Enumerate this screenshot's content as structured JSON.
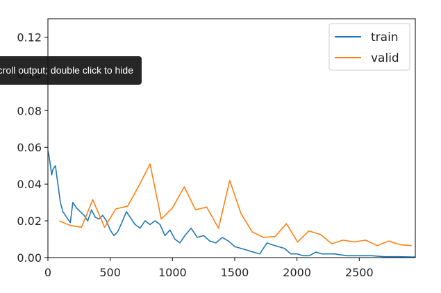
{
  "tooltip": {
    "text": "Click to scroll output; double click to hide"
  },
  "colors": {
    "train": "#1f77b4",
    "valid": "#ff7f0e",
    "axes": "#000000",
    "text": "#222222"
  },
  "chart_data": {
    "type": "line",
    "title": "",
    "xlabel": "",
    "ylabel": "",
    "xlim": [
      0,
      2950
    ],
    "ylim": [
      0,
      0.13
    ],
    "grid": false,
    "legend_position": "top-right",
    "xticks": [
      0,
      500,
      1000,
      1500,
      2000,
      2500
    ],
    "xtick_labels": [
      "0",
      "500",
      "1000",
      "1500",
      "2000",
      "2500"
    ],
    "yticks": [
      0.0,
      0.02,
      0.04,
      0.06,
      0.08,
      0.1,
      0.12
    ],
    "ytick_labels": [
      "0.00",
      "0.02",
      "0.04",
      "0.06",
      "0.08",
      "0.10",
      "0.12"
    ],
    "series": [
      {
        "name": "train",
        "color": "#1f77b4",
        "x": [
          0,
          10,
          20,
          30,
          40,
          60,
          80,
          100,
          120,
          150,
          180,
          200,
          230,
          260,
          290,
          320,
          350,
          380,
          410,
          440,
          470,
          500,
          530,
          560,
          600,
          630,
          660,
          700,
          740,
          780,
          820,
          860,
          900,
          940,
          980,
          1020,
          1060,
          1100,
          1150,
          1200,
          1250,
          1300,
          1350,
          1400,
          1450,
          1500,
          1550,
          1600,
          1650,
          1700,
          1760,
          1800,
          1850,
          1900,
          1950,
          2000,
          2050,
          2100,
          2150,
          2200,
          2300,
          2400,
          2500,
          2600,
          2700,
          2800,
          2950
        ],
        "y": [
          0.058,
          0.055,
          0.05,
          0.045,
          0.048,
          0.05,
          0.04,
          0.03,
          0.025,
          0.022,
          0.019,
          0.03,
          0.027,
          0.025,
          0.023,
          0.02,
          0.026,
          0.022,
          0.021,
          0.023,
          0.02,
          0.015,
          0.012,
          0.014,
          0.02,
          0.025,
          0.022,
          0.018,
          0.016,
          0.02,
          0.018,
          0.02,
          0.018,
          0.012,
          0.015,
          0.01,
          0.008,
          0.012,
          0.016,
          0.011,
          0.012,
          0.009,
          0.008,
          0.011,
          0.009,
          0.006,
          0.005,
          0.004,
          0.003,
          0.002,
          0.008,
          0.007,
          0.006,
          0.005,
          0.002,
          0.002,
          0.001,
          0.001,
          0.003,
          0.002,
          0.002,
          0.001,
          0.001,
          0.001,
          0.0005,
          0.0005,
          0.0003
        ]
      },
      {
        "name": "valid",
        "color": "#ff7f0e",
        "x": [
          90,
          180,
          270,
          360,
          455,
          545,
          640,
          730,
          820,
          910,
          1000,
          1095,
          1185,
          1275,
          1370,
          1460,
          1550,
          1640,
          1730,
          1825,
          1915,
          2005,
          2095,
          2190,
          2280,
          2370,
          2460,
          2550,
          2645,
          2735,
          2830,
          2920
        ],
        "y": [
          0.02,
          0.0175,
          0.0165,
          0.0315,
          0.0165,
          0.0265,
          0.028,
          0.039,
          0.051,
          0.021,
          0.027,
          0.0385,
          0.026,
          0.0275,
          0.016,
          0.042,
          0.024,
          0.014,
          0.011,
          0.0115,
          0.0185,
          0.0085,
          0.0145,
          0.0125,
          0.0075,
          0.0095,
          0.0085,
          0.0095,
          0.0065,
          0.009,
          0.007,
          0.0065
        ]
      }
    ]
  }
}
